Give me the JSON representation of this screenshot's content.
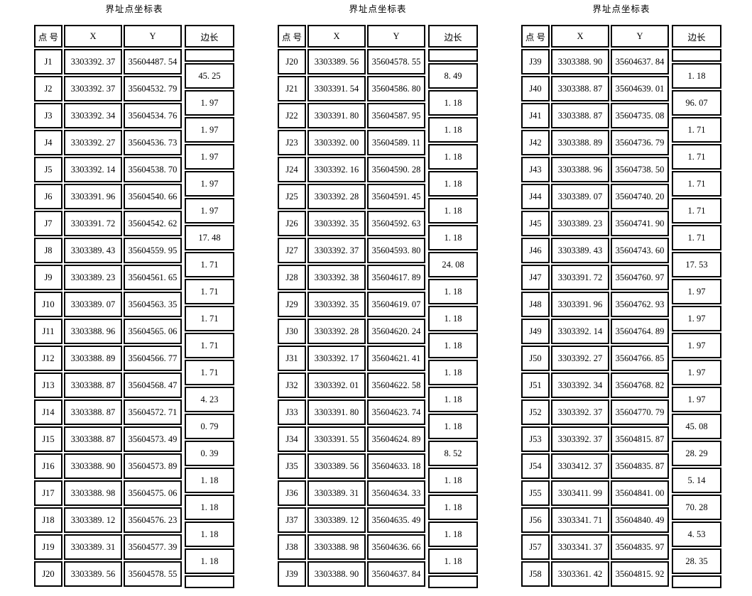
{
  "page": {
    "background_color": "#ffffff",
    "border_color": "#000000",
    "text_color": "#000000"
  },
  "tables": [
    {
      "title": "界址点坐标表",
      "columns": {
        "point": "点 号",
        "x": "X",
        "y": "Y",
        "side": "边长"
      },
      "rows": [
        {
          "point": "J1",
          "x": "3303392. 37",
          "y": "35604487. 54"
        },
        {
          "point": "J2",
          "x": "3303392. 37",
          "y": "35604532. 79"
        },
        {
          "point": "J3",
          "x": "3303392. 34",
          "y": "35604534. 76"
        },
        {
          "point": "J4",
          "x": "3303392. 27",
          "y": "35604536. 73"
        },
        {
          "point": "J5",
          "x": "3303392. 14",
          "y": "35604538. 70"
        },
        {
          "point": "J6",
          "x": "3303391. 96",
          "y": "35604540. 66"
        },
        {
          "point": "J7",
          "x": "3303391. 72",
          "y": "35604542. 62"
        },
        {
          "point": "J8",
          "x": "3303389. 43",
          "y": "35604559. 95"
        },
        {
          "point": "J9",
          "x": "3303389. 23",
          "y": "35604561. 65"
        },
        {
          "point": "J10",
          "x": "3303389. 07",
          "y": "35604563. 35"
        },
        {
          "point": "J11",
          "x": "3303388. 96",
          "y": "35604565. 06"
        },
        {
          "point": "J12",
          "x": "3303388. 89",
          "y": "35604566. 77"
        },
        {
          "point": "J13",
          "x": "3303388. 87",
          "y": "35604568. 47"
        },
        {
          "point": "J14",
          "x": "3303388. 87",
          "y": "35604572. 71"
        },
        {
          "point": "J15",
          "x": "3303388. 87",
          "y": "35604573. 49"
        },
        {
          "point": "J16",
          "x": "3303388. 90",
          "y": "35604573. 89"
        },
        {
          "point": "J17",
          "x": "3303388. 98",
          "y": "35604575. 06"
        },
        {
          "point": "J18",
          "x": "3303389. 12",
          "y": "35604576. 23"
        },
        {
          "point": "J19",
          "x": "3303389. 31",
          "y": "35604577. 39"
        },
        {
          "point": "J20",
          "x": "3303389. 56",
          "y": "35604578. 55"
        }
      ],
      "side_lengths": [
        "45. 25",
        "1. 97",
        "1. 97",
        "1. 97",
        "1. 97",
        "1. 97",
        "17. 48",
        "1. 71",
        "1. 71",
        "1. 71",
        "1. 71",
        "1. 71",
        "4. 23",
        "0. 79",
        "0. 39",
        "1. 18",
        "1. 18",
        "1. 18",
        "1. 18"
      ]
    },
    {
      "title": "界址点坐标表",
      "columns": {
        "point": "点 号",
        "x": "X",
        "y": "Y",
        "side": "边长"
      },
      "rows": [
        {
          "point": "J20",
          "x": "3303389. 56",
          "y": "35604578. 55"
        },
        {
          "point": "J21",
          "x": "3303391. 54",
          "y": "35604586. 80"
        },
        {
          "point": "J22",
          "x": "3303391. 80",
          "y": "35604587. 95"
        },
        {
          "point": "J23",
          "x": "3303392. 00",
          "y": "35604589. 11"
        },
        {
          "point": "J24",
          "x": "3303392. 16",
          "y": "35604590. 28"
        },
        {
          "point": "J25",
          "x": "3303392. 28",
          "y": "35604591. 45"
        },
        {
          "point": "J26",
          "x": "3303392. 35",
          "y": "35604592. 63"
        },
        {
          "point": "J27",
          "x": "3303392. 37",
          "y": "35604593. 80"
        },
        {
          "point": "J28",
          "x": "3303392. 38",
          "y": "35604617. 89"
        },
        {
          "point": "J29",
          "x": "3303392. 35",
          "y": "35604619. 07"
        },
        {
          "point": "J30",
          "x": "3303392. 28",
          "y": "35604620. 24"
        },
        {
          "point": "J31",
          "x": "3303392. 17",
          "y": "35604621. 41"
        },
        {
          "point": "J32",
          "x": "3303392. 01",
          "y": "35604622. 58"
        },
        {
          "point": "J33",
          "x": "3303391. 80",
          "y": "35604623. 74"
        },
        {
          "point": "J34",
          "x": "3303391. 55",
          "y": "35604624. 89"
        },
        {
          "point": "J35",
          "x": "3303389. 56",
          "y": "35604633. 18"
        },
        {
          "point": "J36",
          "x": "3303389. 31",
          "y": "35604634. 33"
        },
        {
          "point": "J37",
          "x": "3303389. 12",
          "y": "35604635. 49"
        },
        {
          "point": "J38",
          "x": "3303388. 98",
          "y": "35604636. 66"
        },
        {
          "point": "J39",
          "x": "3303388. 90",
          "y": "35604637. 84"
        }
      ],
      "side_lengths": [
        "8. 49",
        "1. 18",
        "1. 18",
        "1. 18",
        "1. 18",
        "1. 18",
        "1. 18",
        "24. 08",
        "1. 18",
        "1. 18",
        "1. 18",
        "1. 18",
        "1. 18",
        "1. 18",
        "8. 52",
        "1. 18",
        "1. 18",
        "1. 18",
        "1. 18"
      ]
    },
    {
      "title": "界址点坐标表",
      "columns": {
        "point": "点 号",
        "x": "X",
        "y": "Y",
        "side": "边长"
      },
      "rows": [
        {
          "point": "J39",
          "x": "3303388. 90",
          "y": "35604637. 84"
        },
        {
          "point": "J40",
          "x": "3303388. 87",
          "y": "35604639. 01"
        },
        {
          "point": "J41",
          "x": "3303388. 87",
          "y": "35604735. 08"
        },
        {
          "point": "J42",
          "x": "3303388. 89",
          "y": "35604736. 79"
        },
        {
          "point": "J43",
          "x": "3303388. 96",
          "y": "35604738. 50"
        },
        {
          "point": "J44",
          "x": "3303389. 07",
          "y": "35604740. 20"
        },
        {
          "point": "J45",
          "x": "3303389. 23",
          "y": "35604741. 90"
        },
        {
          "point": "J46",
          "x": "3303389. 43",
          "y": "35604743. 60"
        },
        {
          "point": "J47",
          "x": "3303391. 72",
          "y": "35604760. 97"
        },
        {
          "point": "J48",
          "x": "3303391. 96",
          "y": "35604762. 93"
        },
        {
          "point": "J49",
          "x": "3303392. 14",
          "y": "35604764. 89"
        },
        {
          "point": "J50",
          "x": "3303392. 27",
          "y": "35604766. 85"
        },
        {
          "point": "J51",
          "x": "3303392. 34",
          "y": "35604768. 82"
        },
        {
          "point": "J52",
          "x": "3303392. 37",
          "y": "35604770. 79"
        },
        {
          "point": "J53",
          "x": "3303392. 37",
          "y": "35604815. 87"
        },
        {
          "point": "J54",
          "x": "3303412. 37",
          "y": "35604835. 87"
        },
        {
          "point": "J55",
          "x": "3303411. 99",
          "y": "35604841. 00"
        },
        {
          "point": "J56",
          "x": "3303341. 71",
          "y": "35604840. 49"
        },
        {
          "point": "J57",
          "x": "3303341. 37",
          "y": "35604835. 97"
        },
        {
          "point": "J58",
          "x": "3303361. 42",
          "y": "35604815. 92"
        }
      ],
      "side_lengths": [
        "1. 18",
        "96. 07",
        "1. 71",
        "1. 71",
        "1. 71",
        "1. 71",
        "1. 71",
        "17. 53",
        "1. 97",
        "1. 97",
        "1. 97",
        "1. 97",
        "1. 97",
        "45. 08",
        "28. 29",
        "5. 14",
        "70. 28",
        "4. 53",
        "28. 35"
      ]
    }
  ]
}
